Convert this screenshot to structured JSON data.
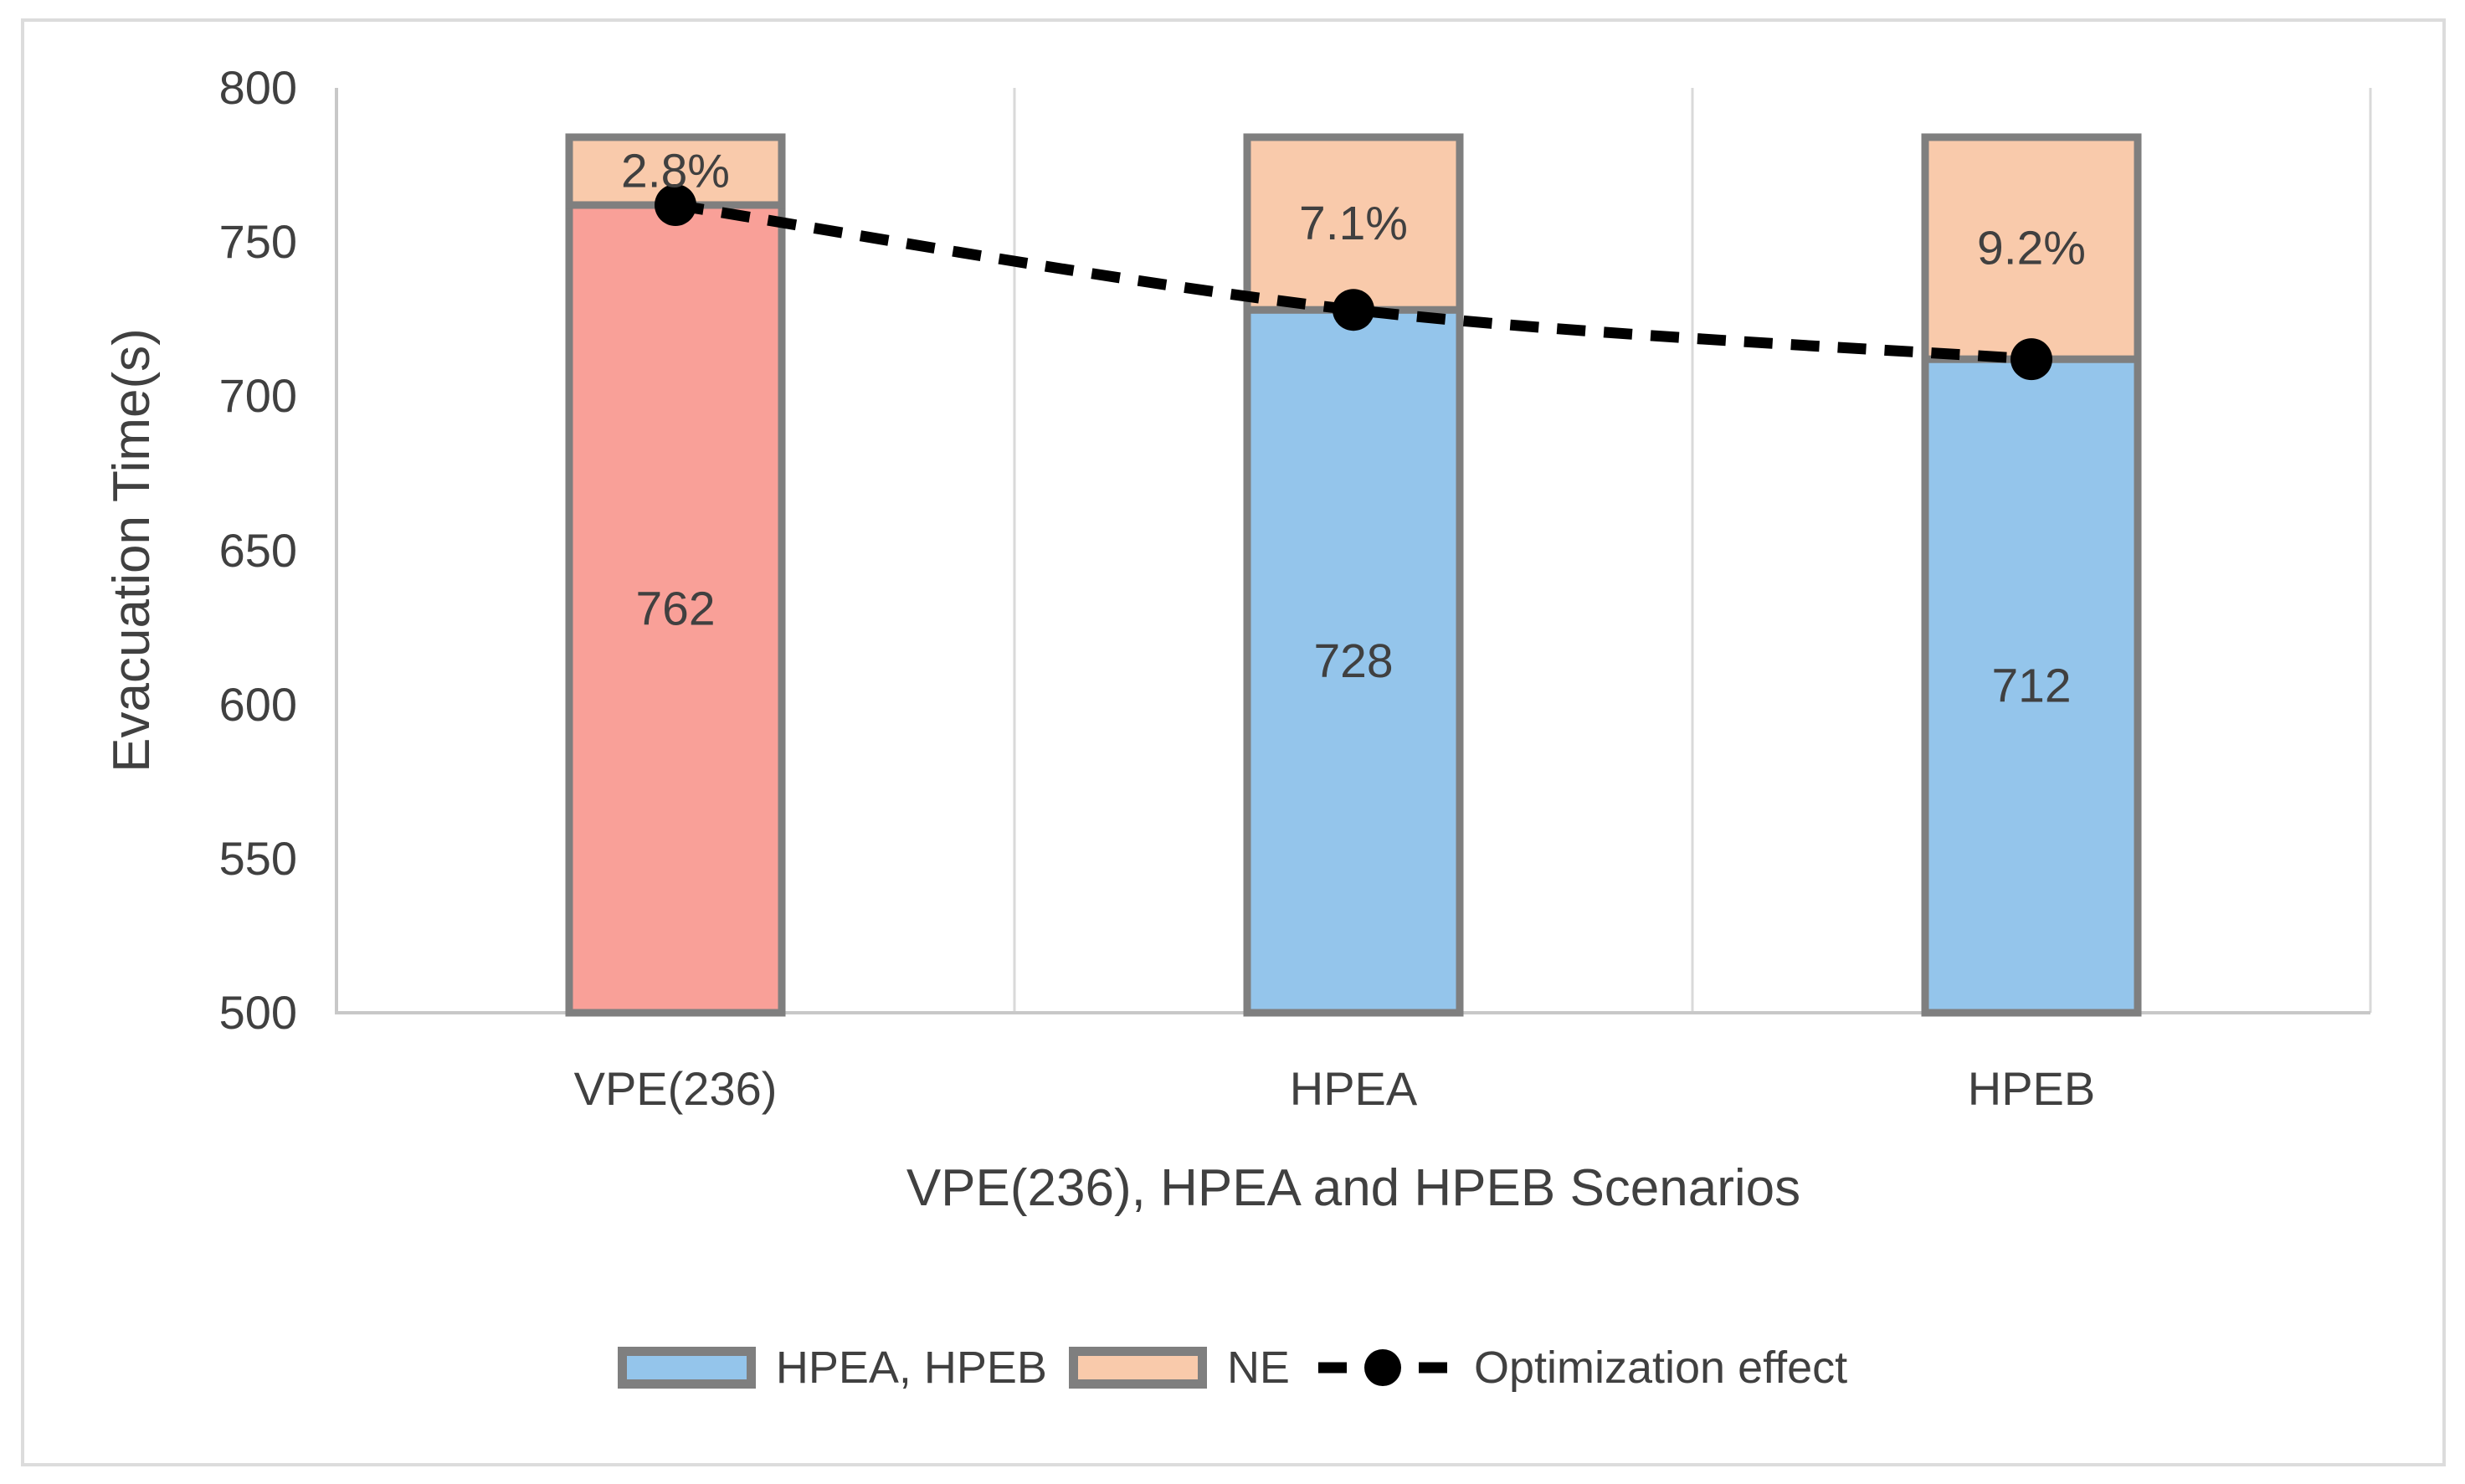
{
  "chart_data": {
    "type": "bar",
    "stacked": true,
    "categories": [
      "VPE(236)",
      "HPEA",
      "HPEB"
    ],
    "series": [
      {
        "name": "HPEA, HPEB",
        "role": "scenario-evacuation-time-bar",
        "values": [
          762,
          728,
          712
        ],
        "value_labels": [
          "762",
          "728",
          "712"
        ],
        "bar_colors": [
          "#F9A098",
          "#94C5EB",
          "#94C5EB"
        ],
        "legend_swatch_color": "#94C5EB"
      },
      {
        "name": "NE",
        "role": "gap-to-ne-bar",
        "stack_top_value": 784,
        "segment_labels": [
          "2.8%",
          "7.1%",
          "9.2%"
        ],
        "color": "#F9CAAB"
      },
      {
        "name": "Optimization effect",
        "role": "dashed-marker-line",
        "values": [
          762,
          728,
          712
        ],
        "style": "dashed-smooth",
        "color": "#000000"
      }
    ],
    "title": "",
    "xlabel": "VPE(236), HPEA and HPEB Scenarios",
    "ylabel": "Evacuation Time(s)",
    "ylim": [
      500,
      800
    ],
    "yticks": [
      500,
      550,
      600,
      650,
      700,
      750,
      800
    ],
    "yticks_desc": [
      "800",
      "750",
      "700",
      "650",
      "600",
      "550",
      "500"
    ],
    "grid": "vertical category separators only",
    "legend_position": "bottom",
    "colors": {
      "bar_border": "#7F7F7F",
      "gridline": "#D9D9D9",
      "axis_line": "#C8C8C8",
      "text": "#404040",
      "frame_border": "#DCDCDC",
      "background": "#FFFFFF"
    }
  }
}
